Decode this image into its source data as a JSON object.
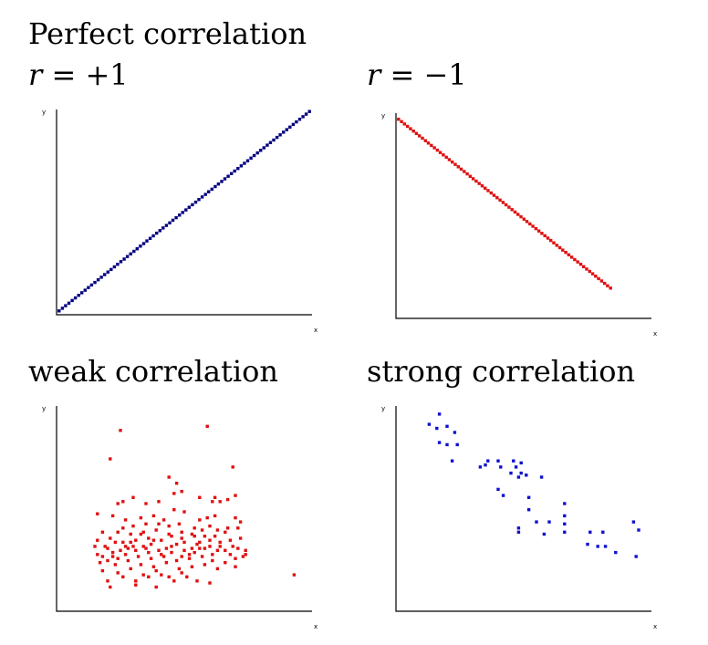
{
  "headings": {
    "top_title": "Perfect correlation",
    "eq_pos": {
      "var": "r",
      "op": "=",
      "val": "+1"
    },
    "eq_neg": {
      "var": "r",
      "op": "=",
      "val": "−1"
    },
    "weak": "weak correlation",
    "strong": "strong correlation"
  },
  "chart_data": [
    {
      "type": "scatter",
      "id": "positive",
      "xlabel": "x",
      "ylabel": "y",
      "xlim": [
        0,
        100
      ],
      "ylim": [
        0,
        100
      ],
      "color": "#000080",
      "generator": {
        "kind": "line",
        "slope": 1,
        "intercept": 0,
        "n": 78,
        "x_start": 1,
        "x_end": 99
      }
    },
    {
      "type": "scatter",
      "id": "negative",
      "xlabel": "x",
      "ylabel": "y",
      "xlim": [
        0,
        100
      ],
      "ylim": [
        0,
        100
      ],
      "color": "#e01010",
      "generator": {
        "kind": "line",
        "slope": -1,
        "intercept": 98,
        "n": 72,
        "x_start": 1,
        "x_end": 84
      }
    },
    {
      "type": "scatter",
      "id": "weak",
      "xlabel": "x",
      "ylabel": "y",
      "xlim": [
        0,
        100
      ],
      "ylim": [
        0,
        100
      ],
      "color": "#e01010",
      "points": [
        [
          25,
          88
        ],
        [
          59,
          90
        ],
        [
          21,
          74
        ],
        [
          44,
          65
        ],
        [
          47,
          62
        ],
        [
          46,
          57
        ],
        [
          49,
          58
        ],
        [
          56,
          55
        ],
        [
          69,
          70
        ],
        [
          26,
          53
        ],
        [
          24,
          52
        ],
        [
          30,
          55
        ],
        [
          35,
          52
        ],
        [
          40,
          53
        ],
        [
          46,
          49
        ],
        [
          50,
          48
        ],
        [
          56,
          44
        ],
        [
          62,
          55
        ],
        [
          61,
          53
        ],
        [
          64,
          53
        ],
        [
          67,
          54
        ],
        [
          70,
          56
        ],
        [
          62,
          46
        ],
        [
          59,
          45
        ],
        [
          70,
          45
        ],
        [
          72,
          43
        ],
        [
          16,
          47
        ],
        [
          22,
          46
        ],
        [
          27,
          44
        ],
        [
          33,
          45
        ],
        [
          38,
          46
        ],
        [
          42,
          44
        ],
        [
          48,
          42
        ],
        [
          54,
          40
        ],
        [
          60,
          41
        ],
        [
          66,
          38
        ],
        [
          71,
          40
        ],
        [
          18,
          38
        ],
        [
          24,
          38
        ],
        [
          29,
          37
        ],
        [
          34,
          38
        ],
        [
          39,
          39
        ],
        [
          44,
          41
        ],
        [
          49,
          38
        ],
        [
          53,
          37
        ],
        [
          57,
          39
        ],
        [
          62,
          36
        ],
        [
          68,
          34
        ],
        [
          72,
          35
        ],
        [
          16,
          34
        ],
        [
          21,
          35
        ],
        [
          26,
          33
        ],
        [
          31,
          34
        ],
        [
          36,
          35
        ],
        [
          41,
          34
        ],
        [
          45,
          36
        ],
        [
          50,
          33
        ],
        [
          55,
          32
        ],
        [
          60,
          34
        ],
        [
          64,
          33
        ],
        [
          69,
          31
        ],
        [
          15,
          31
        ],
        [
          20,
          30
        ],
        [
          25,
          29
        ],
        [
          30,
          31
        ],
        [
          35,
          30
        ],
        [
          40,
          29
        ],
        [
          45,
          31
        ],
        [
          50,
          29
        ],
        [
          54,
          28
        ],
        [
          58,
          30
        ],
        [
          63,
          29
        ],
        [
          68,
          27
        ],
        [
          73,
          26
        ],
        [
          16,
          27
        ],
        [
          22,
          26
        ],
        [
          27,
          27
        ],
        [
          32,
          26
        ],
        [
          37,
          25
        ],
        [
          42,
          26
        ],
        [
          47,
          24
        ],
        [
          52,
          25
        ],
        [
          57,
          26
        ],
        [
          61,
          24
        ],
        [
          66,
          23
        ],
        [
          70,
          21
        ],
        [
          17,
          23
        ],
        [
          23,
          22
        ],
        [
          28,
          24
        ],
        [
          33,
          22
        ],
        [
          38,
          21
        ],
        [
          43,
          23
        ],
        [
          48,
          20
        ],
        [
          53,
          21
        ],
        [
          58,
          22
        ],
        [
          63,
          20
        ],
        [
          18,
          19
        ],
        [
          24,
          18
        ],
        [
          29,
          20
        ],
        [
          34,
          17
        ],
        [
          39,
          19
        ],
        [
          44,
          16
        ],
        [
          49,
          18
        ],
        [
          20,
          14
        ],
        [
          26,
          16
        ],
        [
          31,
          14
        ],
        [
          36,
          16
        ],
        [
          41,
          17
        ],
        [
          46,
          14
        ],
        [
          51,
          16
        ],
        [
          55,
          14
        ],
        [
          60,
          13
        ],
        [
          21,
          11
        ],
        [
          31,
          12
        ],
        [
          39,
          11
        ],
        [
          19,
          31
        ],
        [
          23,
          33
        ],
        [
          28,
          30
        ],
        [
          33,
          37
        ],
        [
          37,
          32
        ],
        [
          43,
          30
        ],
        [
          47,
          32
        ],
        [
          52,
          27
        ],
        [
          56,
          30
        ],
        [
          61,
          27
        ],
        [
          66,
          29
        ],
        [
          71,
          30
        ],
        [
          74,
          27
        ],
        [
          26,
          40
        ],
        [
          30,
          41
        ],
        [
          35,
          42
        ],
        [
          40,
          42
        ],
        [
          44,
          37
        ],
        [
          49,
          35
        ],
        [
          54,
          36
        ],
        [
          58,
          36
        ],
        [
          63,
          39
        ],
        [
          67,
          40
        ],
        [
          41,
          27
        ],
        [
          36,
          28
        ],
        [
          31,
          29
        ],
        [
          27,
          31
        ],
        [
          22,
          28
        ],
        [
          18,
          26
        ],
        [
          45,
          28
        ],
        [
          49,
          26
        ],
        [
          53,
          30
        ],
        [
          38,
          34
        ],
        [
          34,
          31
        ],
        [
          29,
          33
        ],
        [
          24,
          25
        ],
        [
          20,
          24
        ],
        [
          56,
          33
        ],
        [
          60,
          31
        ],
        [
          64,
          31
        ],
        [
          93,
          17
        ],
        [
          70,
          25
        ],
        [
          74,
          29
        ]
      ]
    },
    {
      "type": "scatter",
      "id": "strong",
      "xlabel": "x",
      "ylabel": "y",
      "xlim": [
        0,
        100
      ],
      "ylim": [
        0,
        100
      ],
      "color": "#1010d0",
      "points": [
        [
          17,
          96
        ],
        [
          13,
          91
        ],
        [
          16,
          89
        ],
        [
          20,
          90
        ],
        [
          23,
          87
        ],
        [
          17,
          82
        ],
        [
          20,
          81
        ],
        [
          24,
          81
        ],
        [
          22,
          73
        ],
        [
          33,
          70
        ],
        [
          36,
          73
        ],
        [
          35,
          71
        ],
        [
          40,
          73
        ],
        [
          41,
          70
        ],
        [
          46,
          73
        ],
        [
          47,
          70
        ],
        [
          49,
          72
        ],
        [
          45,
          67
        ],
        [
          49,
          67
        ],
        [
          48,
          65
        ],
        [
          51,
          66
        ],
        [
          57,
          65
        ],
        [
          40,
          59
        ],
        [
          42,
          56
        ],
        [
          52,
          55
        ],
        [
          66,
          52
        ],
        [
          52,
          49
        ],
        [
          55,
          43
        ],
        [
          60,
          43
        ],
        [
          66,
          46
        ],
        [
          66,
          42
        ],
        [
          48,
          40
        ],
        [
          48,
          38
        ],
        [
          58,
          37
        ],
        [
          66,
          38
        ],
        [
          76,
          38
        ],
        [
          81,
          38
        ],
        [
          93,
          43
        ],
        [
          95,
          39
        ],
        [
          75,
          32
        ],
        [
          79,
          31
        ],
        [
          82,
          31
        ],
        [
          86,
          28
        ],
        [
          94,
          26
        ]
      ]
    }
  ]
}
